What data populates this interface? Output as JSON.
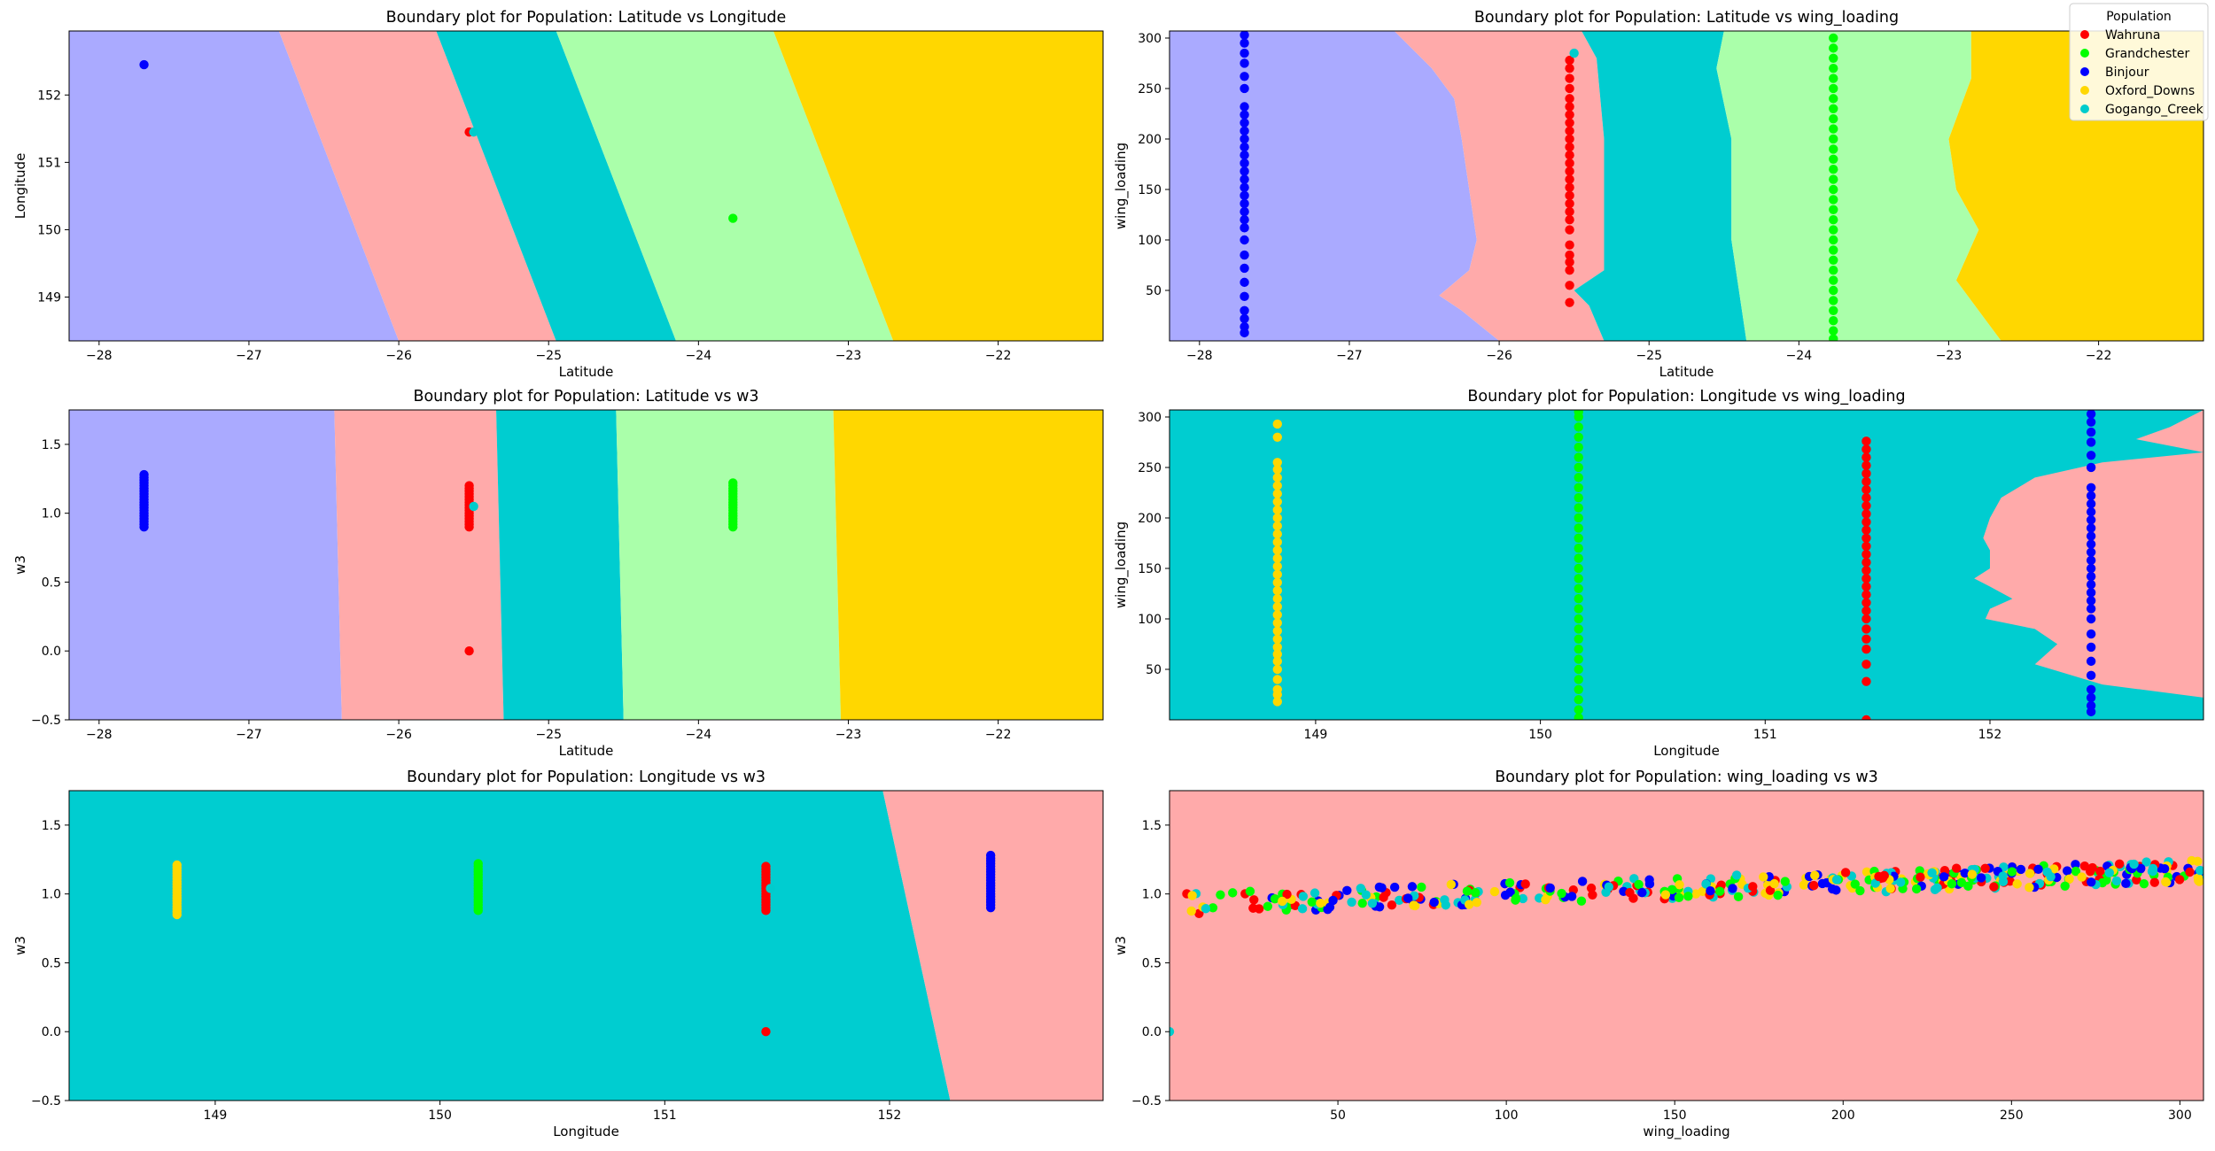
{
  "figure": {
    "legend": {
      "title": "Population",
      "placement": "top-right",
      "entries": [
        {
          "label": "Wahruna",
          "color": "#ff0000"
        },
        {
          "label": "Grandchester",
          "color": "#00ff00"
        },
        {
          "label": "Binjour",
          "color": "#0000ff"
        },
        {
          "label": "Oxford_Downs",
          "color": "#ffd700"
        },
        {
          "label": "Gogango_Creek",
          "color": "#00cccc"
        }
      ]
    }
  },
  "chart_data": [
    {
      "type": "scatter",
      "title": "Boundary plot for Population: Latitude vs Longitude",
      "xlabel": "Latitude",
      "ylabel": "Longitude",
      "xlim": [
        -28.2,
        -21.3
      ],
      "ylim": [
        148.35,
        152.95
      ],
      "xticks": [
        -28,
        -27,
        -26,
        -25,
        -24,
        -23,
        -22
      ],
      "yticks": [
        149,
        150,
        151,
        152
      ],
      "regions": [
        {
          "class": "Binjour",
          "color": "#aaaaff"
        },
        {
          "class": "Wahruna",
          "color": "#ffaaaa"
        },
        {
          "class": "Gogango_Creek",
          "color": "#00cdd0"
        },
        {
          "class": "Grandchester",
          "color": "#aaffaa"
        },
        {
          "class": "Oxford_Downs",
          "color": "#ffd700"
        }
      ],
      "boundaries": [
        {
          "top": [
            -26.8,
            152.95
          ],
          "bottom": [
            -26.0,
            148.35
          ]
        },
        {
          "top": [
            -25.75,
            152.95
          ],
          "bottom": [
            -24.95,
            148.35
          ]
        },
        {
          "top": [
            -24.95,
            152.95
          ],
          "bottom": [
            -24.15,
            148.35
          ]
        },
        {
          "top": [
            -23.5,
            152.95
          ],
          "bottom": [
            -22.7,
            148.35
          ]
        }
      ],
      "series": [
        {
          "name": "Binjour",
          "points": [
            [
              -27.7,
              152.45
            ]
          ]
        },
        {
          "name": "Wahruna",
          "points": [
            [
              -25.53,
              151.45
            ]
          ]
        },
        {
          "name": "Gogango_Creek",
          "points": [
            [
              -25.5,
              151.45
            ]
          ]
        },
        {
          "name": "Grandchester",
          "points": [
            [
              -23.77,
              150.17
            ]
          ]
        }
      ]
    },
    {
      "type": "scatter",
      "title": "Boundary plot for Population: Latitude vs wing_loading",
      "xlabel": "Latitude",
      "ylabel": "wing_loading",
      "xlim": [
        -28.2,
        -21.3
      ],
      "ylim": [
        0,
        307
      ],
      "xticks": [
        -28,
        -27,
        -26,
        -25,
        -24,
        -23,
        -22
      ],
      "yticks": [
        50,
        100,
        150,
        200,
        250,
        300
      ],
      "regions": [
        {
          "class": "Binjour",
          "color": "#aaaaff"
        },
        {
          "class": "Wahruna",
          "color": "#ffaaaa"
        },
        {
          "class": "Gogango_Creek",
          "color": "#00cdd0"
        },
        {
          "class": "Grandchester",
          "color": "#aaffaa"
        },
        {
          "class": "Oxford_Downs",
          "color": "#ffd700"
        }
      ],
      "boundary_profiles": [
        [
          [
            -26.7,
            307
          ],
          [
            -26.45,
            270
          ],
          [
            -26.3,
            240
          ],
          [
            -26.25,
            200
          ],
          [
            -26.2,
            150
          ],
          [
            -26.15,
            100
          ],
          [
            -26.2,
            70
          ],
          [
            -26.4,
            45
          ],
          [
            -26.25,
            30
          ],
          [
            -26.0,
            0
          ]
        ],
        [
          [
            -25.45,
            307
          ],
          [
            -25.35,
            280
          ],
          [
            -25.3,
            200
          ],
          [
            -25.3,
            100
          ],
          [
            -25.3,
            70
          ],
          [
            -25.5,
            50
          ],
          [
            -25.4,
            35
          ],
          [
            -25.3,
            0
          ]
        ],
        [
          [
            -24.5,
            307
          ],
          [
            -24.55,
            270
          ],
          [
            -24.45,
            200
          ],
          [
            -24.45,
            100
          ],
          [
            -24.4,
            50
          ],
          [
            -24.35,
            0
          ]
        ],
        [
          [
            -22.85,
            307
          ],
          [
            -22.85,
            260
          ],
          [
            -23.0,
            200
          ],
          [
            -22.95,
            150
          ],
          [
            -22.8,
            110
          ],
          [
            -22.95,
            60
          ],
          [
            -22.75,
            20
          ],
          [
            -22.65,
            0
          ]
        ]
      ],
      "series": [
        {
          "name": "Binjour",
          "x": -27.7,
          "y_values": [
            8,
            14,
            22,
            30,
            44,
            58,
            72,
            85,
            100,
            112,
            120,
            128,
            136,
            144,
            152,
            160,
            168,
            176,
            184,
            192,
            200,
            208,
            216,
            224,
            232,
            250,
            262,
            275,
            285,
            295,
            303
          ]
        },
        {
          "name": "Wahruna",
          "x": -25.53,
          "y_values": [
            38,
            55,
            70,
            78,
            85,
            95,
            110,
            120,
            128,
            136,
            144,
            152,
            160,
            168,
            176,
            184,
            192,
            200,
            208,
            216,
            224,
            232,
            240,
            250,
            260,
            270,
            278
          ]
        },
        {
          "name": "Gogango_Creek",
          "x": -25.5,
          "y_values": [
            285
          ]
        },
        {
          "name": "Grandchester",
          "x": -23.77,
          "y_values": [
            2,
            10,
            20,
            30,
            40,
            50,
            60,
            70,
            80,
            90,
            100,
            110,
            120,
            130,
            140,
            150,
            160,
            170,
            180,
            190,
            200,
            210,
            220,
            230,
            240,
            250,
            260,
            270,
            280,
            290,
            300
          ]
        }
      ]
    },
    {
      "type": "scatter",
      "title": "Boundary plot for Population: Latitude vs w3",
      "xlabel": "Latitude",
      "ylabel": "w3",
      "xlim": [
        -28.2,
        -21.3
      ],
      "ylim": [
        -0.5,
        1.75
      ],
      "xticks": [
        -28,
        -27,
        -26,
        -25,
        -24,
        -23,
        -22
      ],
      "yticks": [
        -0.5,
        0.0,
        0.5,
        1.0,
        1.5
      ],
      "regions": [
        {
          "class": "Binjour",
          "color": "#aaaaff"
        },
        {
          "class": "Wahruna",
          "color": "#ffaaaa"
        },
        {
          "class": "Gogango_Creek",
          "color": "#00cdd0"
        },
        {
          "class": "Grandchester",
          "color": "#aaffaa"
        },
        {
          "class": "Oxford_Downs",
          "color": "#ffd700"
        }
      ],
      "boundaries": [
        {
          "top": [
            -26.43,
            1.75
          ],
          "bottom": [
            -26.38,
            -0.5
          ]
        },
        {
          "top": [
            -25.35,
            1.75
          ],
          "bottom": [
            -25.3,
            -0.5
          ]
        },
        {
          "top": [
            -24.55,
            1.75
          ],
          "bottom": [
            -24.5,
            -0.5
          ]
        },
        {
          "top": [
            -23.1,
            1.75
          ],
          "bottom": [
            -23.05,
            -0.5
          ]
        }
      ],
      "series": [
        {
          "name": "Binjour",
          "x": -27.7,
          "y_range": [
            0.9,
            1.28
          ]
        },
        {
          "name": "Wahruna",
          "x": -25.53,
          "y_range": [
            0.9,
            1.2
          ],
          "extra_points": [
            [
              -25.53,
              0.0
            ]
          ]
        },
        {
          "name": "Gogango_Creek",
          "points": [
            [
              -25.5,
              1.05
            ]
          ]
        },
        {
          "name": "Grandchester",
          "x": -23.77,
          "y_range": [
            0.9,
            1.22
          ]
        }
      ]
    },
    {
      "type": "scatter",
      "title": "Boundary plot for Population: Longitude vs wing_loading",
      "xlabel": "Longitude",
      "ylabel": "wing_loading",
      "xlim": [
        148.35,
        152.95
      ],
      "ylim": [
        0,
        307
      ],
      "xticks": [
        149,
        150,
        151,
        152
      ],
      "yticks": [
        50,
        100,
        150,
        200,
        250,
        300
      ],
      "regions": [
        {
          "class": "Gogango_Creek",
          "color": "#00cdd0"
        },
        {
          "class": "Wahruna",
          "color": "#ffaaaa"
        }
      ],
      "boundary_profiles": [
        [
          [
            152.95,
            307
          ],
          [
            152.8,
            290
          ],
          [
            152.65,
            278
          ],
          [
            152.95,
            265
          ],
          [
            152.5,
            255
          ],
          [
            152.2,
            240
          ],
          [
            152.05,
            220
          ],
          [
            152.0,
            200
          ],
          [
            151.97,
            180
          ],
          [
            152.0,
            168
          ],
          [
            152.0,
            150
          ],
          [
            151.93,
            140
          ],
          [
            152.0,
            132
          ],
          [
            152.1,
            120
          ],
          [
            152.0,
            110
          ],
          [
            151.98,
            100
          ],
          [
            152.2,
            90
          ],
          [
            152.3,
            75
          ],
          [
            152.2,
            55
          ],
          [
            152.5,
            35
          ],
          [
            152.95,
            22
          ]
        ]
      ],
      "series": [
        {
          "name": "Oxford_Downs",
          "x": 148.83,
          "y_values": [
            18,
            25,
            30,
            40,
            50,
            58,
            65,
            72,
            80,
            88,
            96,
            104,
            112,
            120,
            128,
            136,
            144,
            152,
            160,
            168,
            176,
            184,
            192,
            200,
            208,
            216,
            224,
            232,
            240,
            248,
            255,
            280,
            293
          ]
        },
        {
          "name": "Grandchester",
          "x": 150.17,
          "y_values": [
            2,
            10,
            20,
            30,
            40,
            50,
            60,
            70,
            80,
            90,
            100,
            110,
            120,
            130,
            140,
            150,
            160,
            170,
            180,
            190,
            200,
            210,
            220,
            230,
            240,
            250,
            260,
            270,
            280,
            290,
            300,
            305
          ]
        },
        {
          "name": "Wahruna",
          "x": 151.45,
          "y_values": [
            0,
            38,
            55,
            70,
            80,
            90,
            100,
            108,
            116,
            124,
            132,
            140,
            148,
            156,
            164,
            172,
            180,
            188,
            196,
            204,
            212,
            220,
            228,
            236,
            244,
            252,
            260,
            268,
            276
          ]
        },
        {
          "name": "Binjour",
          "x": 152.45,
          "y_values": [
            8,
            14,
            22,
            30,
            44,
            58,
            72,
            85,
            100,
            110,
            118,
            126,
            134,
            142,
            150,
            158,
            166,
            174,
            182,
            190,
            198,
            206,
            214,
            222,
            230,
            250,
            262,
            275,
            285,
            295,
            303
          ]
        }
      ]
    },
    {
      "type": "scatter",
      "title": "Boundary plot for Population: Longitude vs w3",
      "xlabel": "Longitude",
      "ylabel": "w3",
      "xlim": [
        148.35,
        152.95
      ],
      "ylim": [
        -0.5,
        1.75
      ],
      "xticks": [
        149,
        150,
        151,
        152
      ],
      "yticks": [
        -0.5,
        0.0,
        0.5,
        1.0,
        1.5
      ],
      "regions": [
        {
          "class": "Gogango_Creek",
          "color": "#00cdd0"
        },
        {
          "class": "Wahruna",
          "color": "#ffaaaa"
        }
      ],
      "boundaries": [
        {
          "top": [
            151.97,
            1.75
          ],
          "bottom": [
            152.27,
            -0.5
          ]
        }
      ],
      "series": [
        {
          "name": "Oxford_Downs",
          "x": 148.83,
          "y_range": [
            0.85,
            1.22
          ]
        },
        {
          "name": "Grandchester",
          "x": 150.17,
          "y_range": [
            0.88,
            1.22
          ]
        },
        {
          "name": "Wahruna",
          "x": 151.45,
          "y_range": [
            0.88,
            1.2
          ],
          "extra_points": [
            [
              151.45,
              0.0
            ]
          ]
        },
        {
          "name": "Gogango_Creek",
          "points": [
            [
              151.47,
              1.04
            ]
          ]
        },
        {
          "name": "Binjour",
          "x": 152.45,
          "y_range": [
            0.9,
            1.28
          ]
        }
      ]
    },
    {
      "type": "scatter",
      "title": "Boundary plot for Population: wing_loading vs w3",
      "xlabel": "wing_loading",
      "ylabel": "w3",
      "xlim": [
        0,
        307
      ],
      "ylim": [
        -0.5,
        1.75
      ],
      "xticks": [
        50,
        100,
        150,
        200,
        250,
        300
      ],
      "yticks": [
        -0.5,
        0.0,
        0.5,
        1.0,
        1.5
      ],
      "regions": [
        {
          "class": "Wahruna",
          "color": "#ffaaaa"
        }
      ],
      "cloud": {
        "series": [
          "Wahruna",
          "Grandchester",
          "Binjour",
          "Oxford_Downs",
          "Gogango_Creek"
        ],
        "x_range": [
          5,
          307
        ],
        "trend_y": [
          [
            0,
            0.93
          ],
          [
            300,
            1.16
          ]
        ],
        "count": 420
      },
      "series": [
        {
          "name": "Gogango_Creek",
          "points": [
            [
              0,
              0.0
            ]
          ]
        }
      ]
    }
  ]
}
